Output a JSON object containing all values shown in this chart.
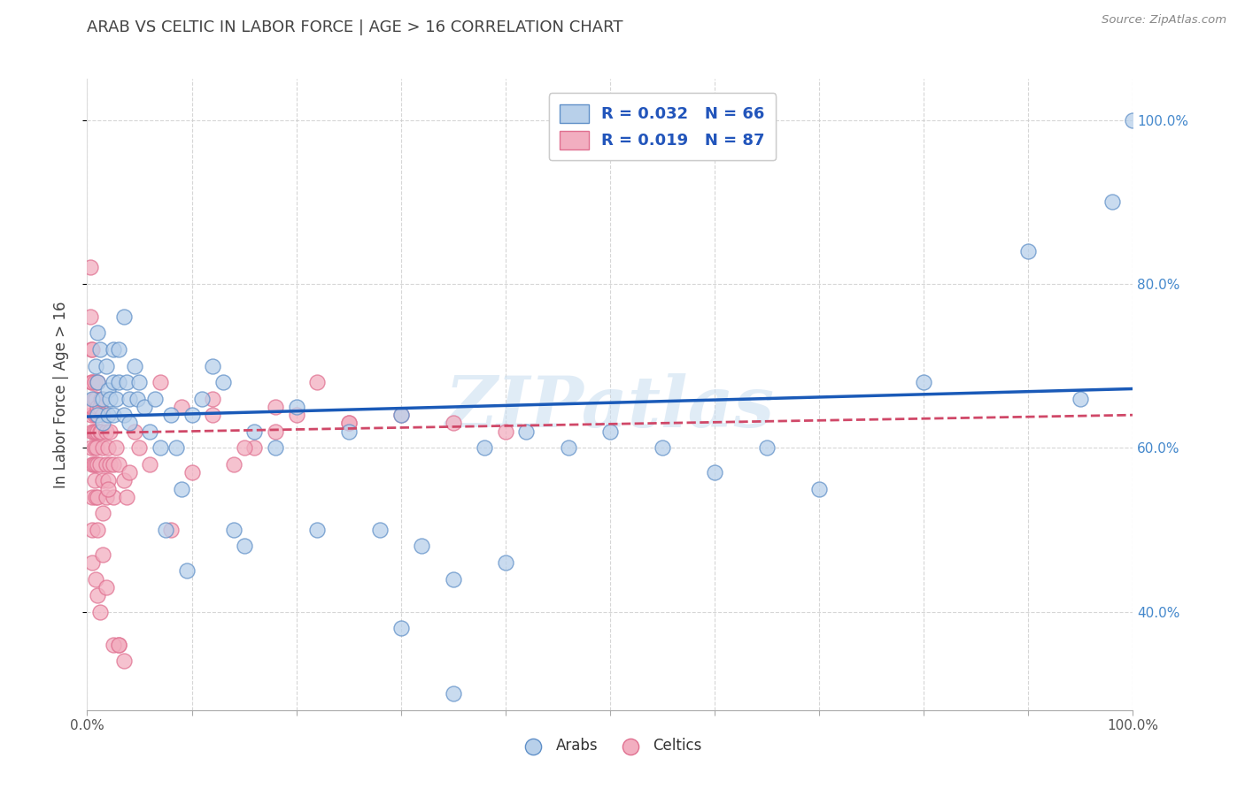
{
  "title": "ARAB VS CELTIC IN LABOR FORCE | AGE > 16 CORRELATION CHART",
  "source_text": "Source: ZipAtlas.com",
  "ylabel": "In Labor Force | Age > 16",
  "xlim": [
    0,
    1.0
  ],
  "ylim": [
    0.28,
    1.05
  ],
  "arab_R": 0.032,
  "arab_N": 66,
  "celtic_R": 0.019,
  "celtic_N": 87,
  "arab_color": "#b8d0ea",
  "celtic_color": "#f2aec0",
  "arab_edge_color": "#6090c8",
  "celtic_edge_color": "#e07090",
  "arab_line_color": "#1a5ab8",
  "celtic_line_color": "#d04868",
  "legend_text_color": "#2255bb",
  "background_color": "#ffffff",
  "grid_color": "#cccccc",
  "title_color": "#444444",
  "watermark_text": "ZIPatlas",
  "watermark_color": "#c8ddf0",
  "ytick_color": "#4488cc",
  "arab_trend_x": [
    0.0,
    1.0
  ],
  "arab_trend_y": [
    0.638,
    0.672
  ],
  "celtic_trend_x": [
    0.0,
    1.0
  ],
  "celtic_trend_y": [
    0.618,
    0.64
  ],
  "arab_x": [
    0.005,
    0.008,
    0.01,
    0.01,
    0.01,
    0.012,
    0.015,
    0.015,
    0.018,
    0.02,
    0.02,
    0.022,
    0.025,
    0.025,
    0.025,
    0.028,
    0.03,
    0.03,
    0.035,
    0.035,
    0.038,
    0.04,
    0.04,
    0.045,
    0.048,
    0.05,
    0.055,
    0.06,
    0.065,
    0.07,
    0.075,
    0.08,
    0.085,
    0.09,
    0.095,
    0.1,
    0.11,
    0.12,
    0.13,
    0.14,
    0.15,
    0.16,
    0.18,
    0.2,
    0.22,
    0.25,
    0.28,
    0.3,
    0.32,
    0.35,
    0.38,
    0.4,
    0.42,
    0.46,
    0.5,
    0.55,
    0.6,
    0.65,
    0.7,
    0.8,
    0.9,
    0.95,
    0.98,
    0.3,
    0.35,
    1.0
  ],
  "arab_y": [
    0.66,
    0.7,
    0.74,
    0.68,
    0.64,
    0.72,
    0.66,
    0.63,
    0.7,
    0.67,
    0.64,
    0.66,
    0.72,
    0.68,
    0.64,
    0.66,
    0.72,
    0.68,
    0.76,
    0.64,
    0.68,
    0.66,
    0.63,
    0.7,
    0.66,
    0.68,
    0.65,
    0.62,
    0.66,
    0.6,
    0.5,
    0.64,
    0.6,
    0.55,
    0.45,
    0.64,
    0.66,
    0.7,
    0.68,
    0.5,
    0.48,
    0.62,
    0.6,
    0.65,
    0.5,
    0.62,
    0.5,
    0.64,
    0.48,
    0.44,
    0.6,
    0.46,
    0.62,
    0.6,
    0.62,
    0.6,
    0.57,
    0.6,
    0.55,
    0.68,
    0.84,
    0.66,
    0.9,
    0.38,
    0.3,
    1.0
  ],
  "celtic_x": [
    0.003,
    0.003,
    0.004,
    0.004,
    0.004,
    0.004,
    0.005,
    0.005,
    0.005,
    0.005,
    0.005,
    0.005,
    0.005,
    0.006,
    0.006,
    0.006,
    0.007,
    0.007,
    0.007,
    0.007,
    0.008,
    0.008,
    0.008,
    0.008,
    0.009,
    0.009,
    0.01,
    0.01,
    0.01,
    0.01,
    0.01,
    0.01,
    0.012,
    0.012,
    0.012,
    0.013,
    0.013,
    0.015,
    0.015,
    0.015,
    0.015,
    0.018,
    0.018,
    0.018,
    0.02,
    0.02,
    0.022,
    0.022,
    0.025,
    0.025,
    0.028,
    0.03,
    0.03,
    0.035,
    0.038,
    0.04,
    0.045,
    0.05,
    0.06,
    0.07,
    0.08,
    0.09,
    0.1,
    0.12,
    0.14,
    0.16,
    0.18,
    0.2,
    0.25,
    0.3,
    0.35,
    0.4,
    0.12,
    0.15,
    0.18,
    0.22,
    0.25,
    0.005,
    0.008,
    0.01,
    0.012,
    0.015,
    0.018,
    0.02,
    0.025,
    0.03,
    0.035
  ],
  "celtic_y": [
    0.82,
    0.76,
    0.72,
    0.68,
    0.64,
    0.6,
    0.72,
    0.68,
    0.65,
    0.62,
    0.58,
    0.54,
    0.5,
    0.66,
    0.62,
    0.58,
    0.68,
    0.64,
    0.6,
    0.56,
    0.66,
    0.62,
    0.58,
    0.54,
    0.64,
    0.6,
    0.68,
    0.65,
    0.62,
    0.58,
    0.54,
    0.5,
    0.65,
    0.62,
    0.58,
    0.66,
    0.62,
    0.64,
    0.6,
    0.56,
    0.52,
    0.62,
    0.58,
    0.54,
    0.6,
    0.56,
    0.62,
    0.58,
    0.58,
    0.54,
    0.6,
    0.58,
    0.36,
    0.56,
    0.54,
    0.57,
    0.62,
    0.6,
    0.58,
    0.68,
    0.5,
    0.65,
    0.57,
    0.64,
    0.58,
    0.6,
    0.62,
    0.64,
    0.63,
    0.64,
    0.63,
    0.62,
    0.66,
    0.6,
    0.65,
    0.68,
    0.63,
    0.46,
    0.44,
    0.42,
    0.4,
    0.47,
    0.43,
    0.55,
    0.36,
    0.36,
    0.34
  ]
}
